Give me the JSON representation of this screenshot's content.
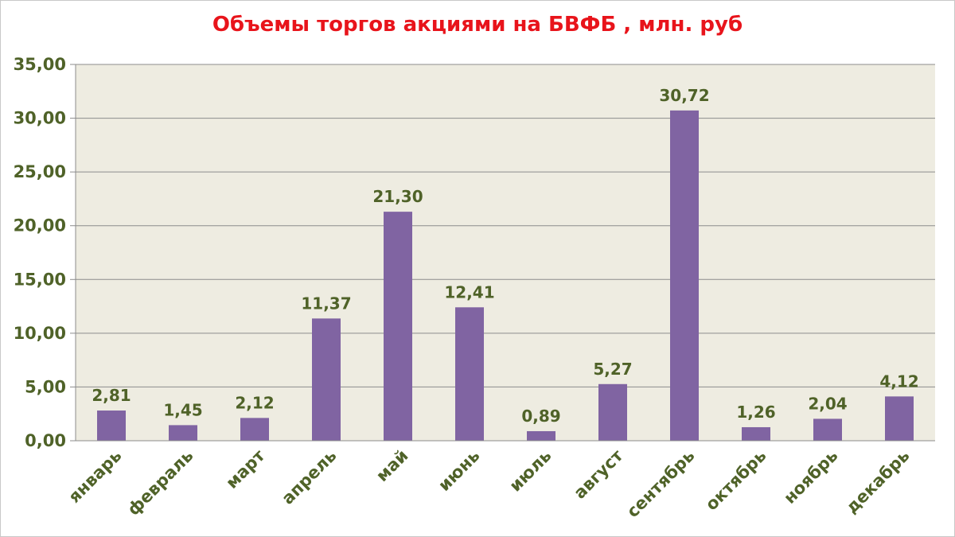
{
  "chart_data": {
    "type": "bar",
    "title": "Объемы торгов акциями на БВФБ , млн. руб",
    "xlabel": "",
    "ylabel": "",
    "categories": [
      "январь",
      "февраль",
      "март",
      "апрель",
      "май",
      "июнь",
      "июль",
      "август",
      "сентябрь",
      "октябрь",
      "ноябрь",
      "декабрь"
    ],
    "values": [
      2.81,
      1.45,
      2.12,
      11.37,
      21.3,
      12.41,
      0.89,
      5.27,
      30.72,
      1.26,
      2.04,
      4.12
    ],
    "data_labels": [
      "2,81",
      "1,45",
      "2,12",
      "11,37",
      "21,30",
      "12,41",
      "0,89",
      "5,27",
      "30,72",
      "1,26",
      "2,04",
      "4,12"
    ],
    "y_ticks": [
      0,
      5,
      10,
      15,
      20,
      25,
      30,
      35
    ],
    "y_tick_labels": [
      "0,00",
      "5,00",
      "10,00",
      "15,00",
      "20,00",
      "25,00",
      "30,00",
      "35,00"
    ],
    "ylim": [
      0,
      35
    ],
    "grid": true,
    "legend": "none",
    "colors": {
      "bar": "#8064a2",
      "plot_background": "#eeece1",
      "title": "#e8141b",
      "labels": "#4f6228",
      "gridline": "#8c8c8c"
    }
  }
}
